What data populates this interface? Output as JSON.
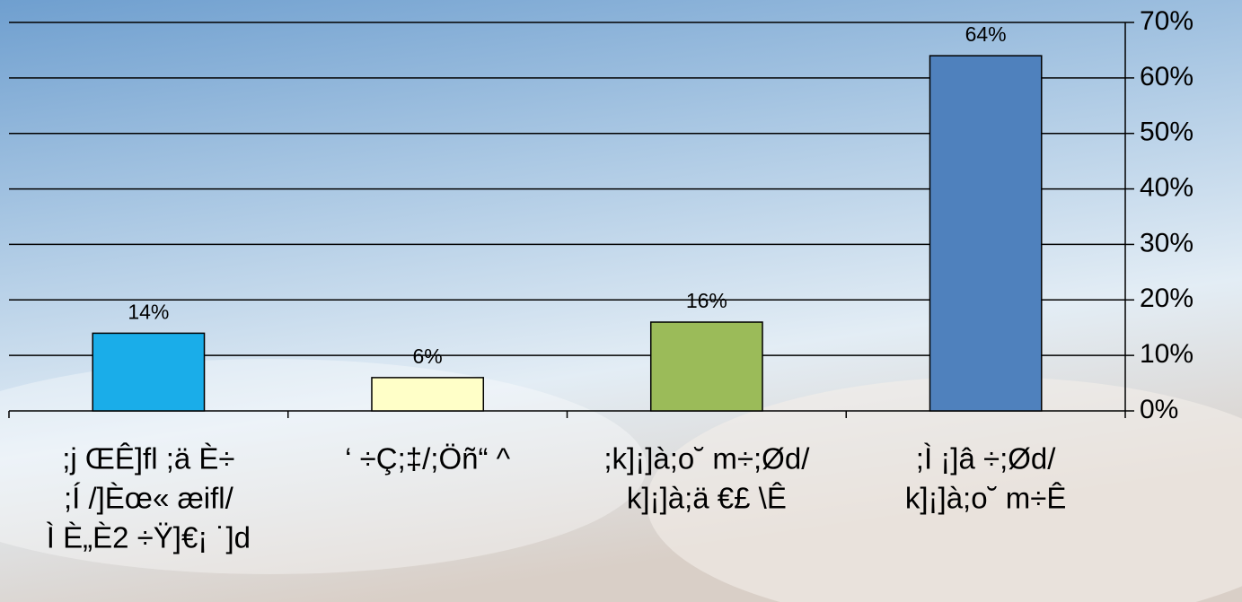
{
  "chart_data": {
    "type": "bar",
    "categories": [
      [
        ";j ŒÊ]fl ;ä È÷",
        ";Í /]Èœ« æifl/",
        "Ì È„È2 ÷Ÿ]€¡ ˙]d"
      ],
      [
        "‘ ÷Ç;‡/;Öñ“ ^"
      ],
      [
        ";k]¡]à;o˘ m÷;Ød/",
        "k]¡]à;ä €£ \\Ê"
      ],
      [
        ";Ì ¡]â ÷;Ød/",
        "k]¡]à;o˘ m÷Ê"
      ]
    ],
    "values": [
      14,
      6,
      16,
      64
    ],
    "value_labels": [
      "14%",
      "6%",
      "16%",
      "64%"
    ],
    "colors": [
      "#1aade9",
      "#ffffc8",
      "#9bbb59",
      "#4f81bd"
    ],
    "ylim": [
      0,
      70
    ],
    "yticks": [
      {
        "value": 0,
        "label": "0%"
      },
      {
        "value": 10,
        "label": "10%"
      },
      {
        "value": 20,
        "label": "20%"
      },
      {
        "value": 30,
        "label": "30%"
      },
      {
        "value": 40,
        "label": "40%"
      },
      {
        "value": 50,
        "label": "50%"
      },
      {
        "value": 60,
        "label": "60%"
      },
      {
        "value": 70,
        "label": "70%"
      }
    ],
    "y_axis_side": "right",
    "grid": true
  }
}
